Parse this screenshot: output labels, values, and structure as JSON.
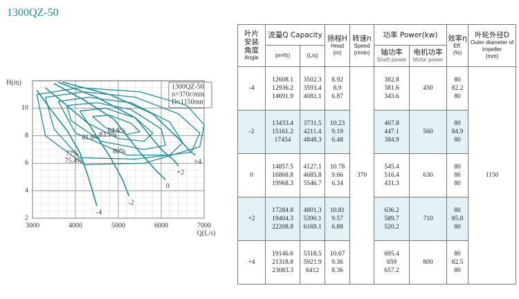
{
  "title": "1300QZ-50",
  "chart_data": {
    "type": "line",
    "info": [
      "1300QZ-50",
      "n=370r/min",
      "D=1150mm"
    ],
    "xlabel": "Q(L/s)",
    "ylabel": "H(m)",
    "xlim": [
      3000,
      7000
    ],
    "ylim": [
      2,
      12
    ],
    "xticks": [
      3000,
      4000,
      5000,
      6000,
      7000
    ],
    "yticks": [
      2,
      4,
      6,
      8,
      10
    ],
    "grid": true,
    "color": "#1b8c9c",
    "series": [
      {
        "name": "-4",
        "x": [
          3100,
          3500,
          3800,
          4100,
          4300,
          4500
        ],
        "values": [
          11.3,
          9.6,
          8.4,
          6.8,
          5.0,
          2.9
        ]
      },
      {
        "name": "-2",
        "x": [
          3300,
          3800,
          4300,
          4800,
          5100,
          5250
        ],
        "values": [
          11.5,
          10.2,
          8.9,
          6.5,
          4.8,
          3.6
        ]
      },
      {
        "name": "0",
        "x": [
          3500,
          4200,
          4900,
          5500,
          5900,
          6100
        ],
        "values": [
          11.8,
          10.6,
          9.2,
          6.8,
          5.4,
          4.8
        ]
      },
      {
        "name": "+2",
        "x": [
          3600,
          4500,
          5400,
          6000,
          6300,
          6400
        ],
        "values": [
          11.9,
          10.8,
          9.3,
          7.0,
          6.2,
          5.8
        ]
      },
      {
        "name": "+4",
        "x": [
          3700,
          4800,
          5800,
          6400,
          6700,
          6800
        ],
        "values": [
          11.9,
          11.0,
          9.6,
          7.8,
          6.8,
          6.6
        ]
      }
    ],
    "efficiency_curves": [
      {
        "name": "84.6%",
        "x": [
          4400,
          4800,
          5300,
          5500,
          5200,
          4700,
          4400
        ],
        "values": [
          9.4,
          9.5,
          8.9,
          8.3,
          8.1,
          8.6,
          9.4
        ]
      },
      {
        "name": "83.1%",
        "x": [
          4100,
          4700,
          5400,
          5800,
          5600,
          5000,
          4300,
          4100
        ],
        "values": [
          9.8,
          10.0,
          9.3,
          8.2,
          7.6,
          7.8,
          8.9,
          9.8
        ]
      },
      {
        "name": "81.6%",
        "x": [
          3800,
          4500,
          5300,
          6000,
          6100,
          5600,
          4600,
          3900,
          3800
        ],
        "values": [
          10.2,
          10.4,
          9.9,
          8.5,
          7.3,
          7.0,
          7.6,
          9.1,
          10.2
        ]
      },
      {
        "name": "80%",
        "x": [
          3600,
          4300,
          5300,
          6200,
          6500,
          6200,
          5200,
          4000,
          3600
        ],
        "values": [
          10.5,
          10.8,
          10.4,
          9.0,
          7.5,
          6.6,
          6.6,
          8.2,
          10.5
        ]
      },
      {
        "name": "77%",
        "x": [
          3300,
          4200,
          5400,
          6400,
          6900,
          6700,
          5400,
          4100,
          3500,
          3300
        ],
        "values": [
          10.8,
          11.2,
          10.8,
          9.6,
          8.2,
          6.8,
          6.3,
          6.4,
          8.5,
          10.8
        ]
      },
      {
        "name": "75.4%",
        "x": [
          3100,
          4100,
          5500,
          6600,
          7000,
          6900,
          5600,
          4200,
          3300,
          3100
        ],
        "values": [
          11.0,
          11.5,
          11.2,
          10.2,
          8.8,
          7.2,
          6.0,
          5.9,
          8.0,
          11.0
        ]
      }
    ]
  },
  "table": {
    "header": {
      "angle_cn": "叶片安装角度",
      "angle_en": "Angle",
      "capacity": "流量Q Capacity",
      "m3h": "(m³/h)",
      "ls": "(L/s)",
      "head_cn": "扬程H",
      "head_en": "Head",
      "head_unit": "(m)",
      "speed_cn": "转速n",
      "speed_en": "Speed",
      "speed_unit": "(r/min)",
      "power": "功率 Power(kw)",
      "shaft_cn": "轴功率",
      "shaft_en": "Shaft power",
      "motor_cn": "电机功率",
      "motor_en": "Motor power",
      "eff_cn": "效率η",
      "eff_en": "Eff.",
      "eff_unit": "(%)",
      "diam_cn": "叶轮外径D",
      "diam_en": "Outer diameter of impeller",
      "diam_unit": "(mm)"
    },
    "rows": [
      {
        "angle": "-4",
        "q_m3h": [
          "12608.1",
          "12936.2",
          "14691.9"
        ],
        "q_ls": [
          "3502.3",
          "3593.4",
          "4081.1"
        ],
        "head": [
          "8.92",
          "8.9",
          "6.87"
        ],
        "shaft": [
          "382.8",
          "381.6",
          "343.6"
        ],
        "motor": "450",
        "eff": [
          "80",
          "82.2",
          "80"
        ]
      },
      {
        "angle": "-2",
        "q_m3h": [
          "13433.4",
          "15161.2",
          "17454"
        ],
        "q_ls": [
          "3731.5",
          "4211.4",
          "4848.3"
        ],
        "head": [
          "10.23",
          "9.19",
          "6.48"
        ],
        "shaft": [
          "467.8",
          "447.1",
          "384.9"
        ],
        "motor": "560",
        "eff": [
          "80",
          "84.9",
          "80"
        ]
      },
      {
        "angle": "0",
        "q_m3h": [
          "14857.5",
          "16868.8",
          "19968.3"
        ],
        "q_ls": [
          "4127.1",
          "4685.8",
          "5546.7"
        ],
        "head": [
          "10.78",
          "9.66",
          "6.34"
        ],
        "shaft": [
          "545.4",
          "516.4",
          "431.3"
        ],
        "motor": "630",
        "eff": [
          "80",
          "86",
          "80"
        ]
      },
      {
        "angle": "+2",
        "q_m3h": [
          "17284.8",
          "19404.3",
          "22208.8"
        ],
        "q_ls": [
          "4801.3",
          "5390.1",
          "6169.1"
        ],
        "head": [
          "10.81",
          "9.57",
          "6.88"
        ],
        "shaft": [
          "636.2",
          "589.7",
          "520.2"
        ],
        "motor": "710",
        "eff": [
          "80",
          "85.8",
          "80"
        ]
      },
      {
        "angle": "+4",
        "q_m3h": [
          "19146.6",
          "21318.8",
          "23083.3"
        ],
        "q_ls": [
          "5318.5",
          "5921.9",
          "6412"
        ],
        "head": [
          "10.67",
          "9.36",
          "8.36"
        ],
        "shaft": [
          "695.4",
          "659",
          "657.2"
        ],
        "motor": "800",
        "eff": [
          "80",
          "82.5",
          "80"
        ]
      }
    ],
    "speed": "370",
    "diameter": "1150"
  }
}
